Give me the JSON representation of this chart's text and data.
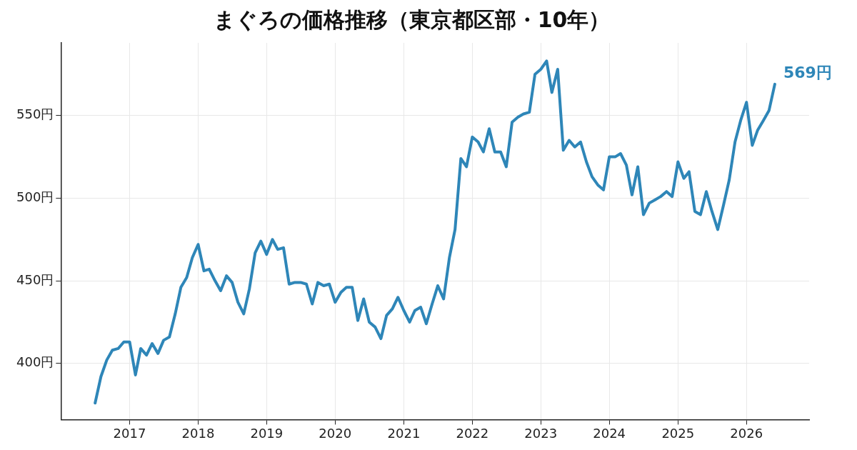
{
  "chart_data": {
    "type": "line",
    "title": "まぐろの価格推移（東京都区部・10年）",
    "x": [
      "2016-07",
      "2016-08",
      "2016-09",
      "2016-10",
      "2016-11",
      "2016-12",
      "2017-01",
      "2017-02",
      "2017-03",
      "2017-04",
      "2017-05",
      "2017-06",
      "2017-07",
      "2017-08",
      "2017-09",
      "2017-10",
      "2017-11",
      "2017-12",
      "2018-01",
      "2018-02",
      "2018-03",
      "2018-04",
      "2018-05",
      "2018-06",
      "2018-07",
      "2018-08",
      "2018-09",
      "2018-10",
      "2018-11",
      "2018-12",
      "2019-01",
      "2019-02",
      "2019-03",
      "2019-04",
      "2019-05",
      "2019-06",
      "2019-07",
      "2019-08",
      "2019-09",
      "2019-10",
      "2019-11",
      "2019-12",
      "2020-01",
      "2020-02",
      "2020-03",
      "2020-04",
      "2020-05",
      "2020-06",
      "2020-07",
      "2020-08",
      "2020-09",
      "2020-10",
      "2020-11",
      "2020-12",
      "2021-01",
      "2021-02",
      "2021-03",
      "2021-04",
      "2021-05",
      "2021-06",
      "2021-07",
      "2021-08",
      "2021-09",
      "2021-10",
      "2021-11",
      "2021-12",
      "2022-01",
      "2022-02",
      "2022-03",
      "2022-04",
      "2022-05",
      "2022-06",
      "2022-07",
      "2022-08",
      "2022-09",
      "2022-10",
      "2022-11",
      "2022-12",
      "2023-01",
      "2023-02",
      "2023-03",
      "2023-04",
      "2023-05",
      "2023-06",
      "2023-07",
      "2023-08",
      "2023-09",
      "2023-10",
      "2023-11",
      "2023-12",
      "2024-01",
      "2024-02",
      "2024-03",
      "2024-04",
      "2024-05",
      "2024-06",
      "2024-07",
      "2024-08",
      "2024-09",
      "2024-10",
      "2024-11",
      "2024-12",
      "2025-01",
      "2025-02",
      "2025-03",
      "2025-04",
      "2025-05",
      "2025-06",
      "2025-07",
      "2025-08",
      "2025-09",
      "2025-10",
      "2025-11",
      "2025-12",
      "2026-01",
      "2026-02",
      "2026-03",
      "2026-04",
      "2026-05",
      "2026-06"
    ],
    "series": [
      {
        "color": "#2e86b8",
        "values": [
          376,
          392,
          402,
          408,
          409,
          413,
          413,
          393,
          409,
          405,
          412,
          406,
          414,
          416,
          430,
          446,
          452,
          464,
          472,
          456,
          457,
          450,
          444,
          453,
          449,
          437,
          430,
          445,
          467,
          474,
          466,
          475,
          469,
          470,
          448,
          449,
          449,
          448,
          436,
          449,
          447,
          448,
          437,
          443,
          446,
          446,
          426,
          439,
          425,
          422,
          415,
          429,
          433,
          440,
          432,
          425,
          432,
          434,
          424,
          436,
          447,
          439,
          464,
          481,
          524,
          519,
          537,
          534,
          528,
          542,
          528,
          528,
          519,
          546,
          549,
          551,
          552,
          575,
          578,
          583,
          564,
          578,
          529,
          535,
          531,
          534,
          522,
          513,
          508,
          505,
          525,
          525,
          527,
          520,
          502,
          519,
          490,
          497,
          499,
          501,
          504,
          501,
          522,
          512,
          516,
          492,
          490,
          504,
          492,
          481,
          496,
          511,
          534,
          547,
          558,
          532,
          541,
          547,
          553,
          569
        ]
      }
    ],
    "xlim": [
      "2016-01",
      "2026-12"
    ],
    "xticks": [
      "2017",
      "2018",
      "2019",
      "2020",
      "2021",
      "2022",
      "2023",
      "2024",
      "2025",
      "2026"
    ],
    "ylim": [
      366,
      594
    ],
    "yticks": [
      {
        "value": 400,
        "label": "400円"
      },
      {
        "value": 450,
        "label": "450円"
      },
      {
        "value": 500,
        "label": "500円"
      },
      {
        "value": 550,
        "label": "550円"
      }
    ],
    "grid": true,
    "legend": false,
    "marker": "none",
    "line_style": "solid",
    "annotations": [
      {
        "text": "569円",
        "x": "2026-06",
        "y": 569
      }
    ]
  }
}
